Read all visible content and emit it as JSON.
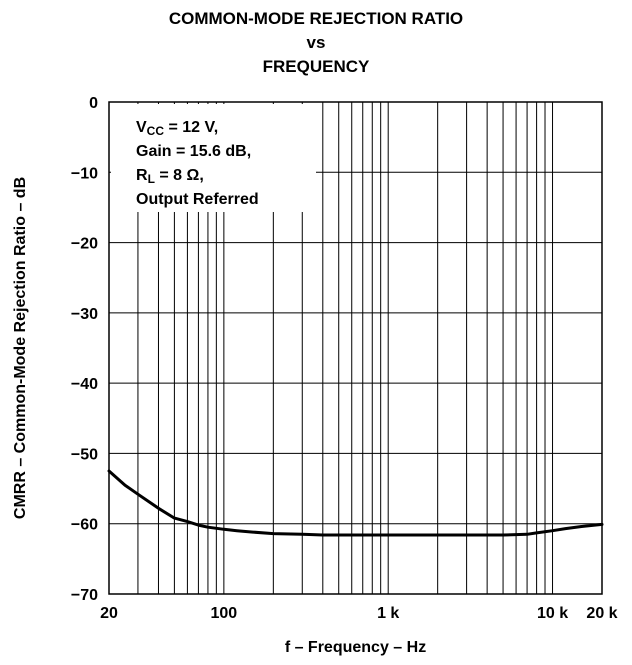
{
  "title_lines": [
    "COMMON-MODE REJECTION RATIO",
    "vs",
    "FREQUENCY"
  ],
  "chart_data": {
    "type": "line",
    "title": "COMMON-MODE REJECTION RATIO vs FREQUENCY",
    "xlabel": "f – Frequency – Hz",
    "ylabel": "CMRR – Common-Mode Rejection Ratio – dB",
    "x_scale": "log",
    "xlim": [
      20,
      20000
    ],
    "ylim": [
      -70,
      0
    ],
    "x_ticks": [
      20,
      100,
      1000,
      10000,
      20000
    ],
    "x_tick_labels": [
      "20",
      "100",
      "1 k",
      "10 k",
      "20 k"
    ],
    "y_ticks": [
      0,
      -10,
      -20,
      -30,
      -40,
      -50,
      -60,
      -70
    ],
    "y_tick_labels": [
      "0",
      "−10",
      "−20",
      "−30",
      "−40",
      "−50",
      "−60",
      "−70"
    ],
    "grid": true,
    "annotation": {
      "lines": [
        {
          "main": "V",
          "sub": "CC",
          "rest": " = 12 V,"
        },
        {
          "main": "Gain = 15.6 dB,",
          "sub": "",
          "rest": ""
        },
        {
          "main": "R",
          "sub": "L",
          "rest": " = 8 Ω,"
        },
        {
          "main": "Output Referred",
          "sub": "",
          "rest": ""
        }
      ]
    },
    "series": [
      {
        "color": "#000000",
        "x": [
          20,
          25,
          30,
          40,
          50,
          60,
          70,
          80,
          100,
          120,
          150,
          200,
          300,
          400,
          500,
          1000,
          2000,
          3000,
          5000,
          7000,
          8000,
          10000,
          12000,
          15000,
          20000
        ],
        "y": [
          -52.5,
          -54.5,
          -55.8,
          -57.8,
          -59.2,
          -59.7,
          -60.2,
          -60.5,
          -60.8,
          -61.0,
          -61.2,
          -61.4,
          -61.5,
          -61.6,
          -61.6,
          -61.6,
          -61.6,
          -61.6,
          -61.6,
          -61.5,
          -61.3,
          -61.0,
          -60.7,
          -60.4,
          -60.1
        ]
      }
    ]
  }
}
